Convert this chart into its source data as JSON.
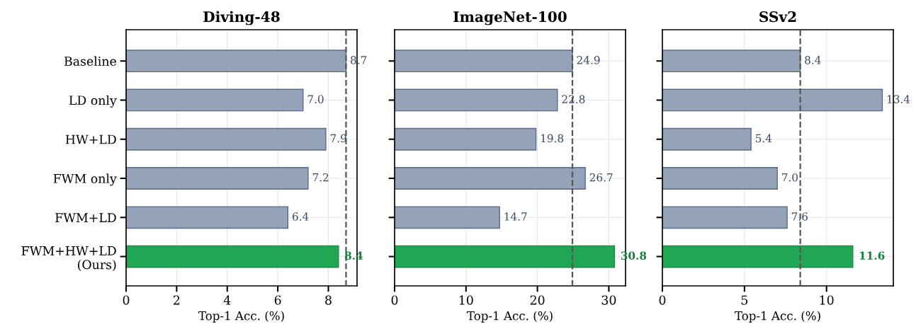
{
  "chart_data": [
    {
      "type": "bar",
      "orientation": "horizontal",
      "title": "Diving-48",
      "xlabel": "Top-1 Acc. (%)",
      "categories": [
        "Baseline",
        "LD only",
        "HW+LD",
        "FWM only",
        "FWM+LD",
        "FWM+HW+LD\n(Ours)"
      ],
      "values": [
        8.7,
        7.0,
        7.9,
        7.2,
        6.4,
        8.4
      ],
      "colors": [
        "#94a3b8",
        "#94a3b8",
        "#94a3b8",
        "#94a3b8",
        "#94a3b8",
        "#16a34a"
      ],
      "value_labels": [
        "8.7",
        "7.0",
        "7.9",
        "7.2",
        "6.4",
        "8.4"
      ],
      "xlim": [
        0,
        9.135
      ],
      "xticks": [
        0,
        2,
        4,
        6,
        8
      ],
      "grid": true,
      "ref_lines": [
        {
          "axis": "x",
          "value": 8.7,
          "label": null,
          "color": "#555555",
          "line_style": "dashed"
        }
      ]
    },
    {
      "type": "bar",
      "orientation": "horizontal",
      "title": "ImageNet-100",
      "xlabel": "Top-1 Acc. (%)",
      "categories": [
        null,
        null,
        null,
        null,
        null,
        null
      ],
      "values": [
        24.9,
        22.8,
        19.8,
        26.7,
        14.7,
        30.8
      ],
      "colors": [
        "#94a3b8",
        "#94a3b8",
        "#94a3b8",
        "#94a3b8",
        "#94a3b8",
        "#16a34a"
      ],
      "value_labels": [
        "24.9",
        "22.8",
        "19.8",
        "26.7",
        "14.7",
        "30.8"
      ],
      "xlim": [
        0,
        32.34
      ],
      "xticks": [
        0,
        10,
        20,
        30
      ],
      "grid": true,
      "tick_labels": "x",
      "ref_lines": [
        {
          "axis": "x",
          "value": 24.9,
          "label": null,
          "color": "#555555",
          "line_style": "dashed"
        }
      ]
    },
    {
      "type": "bar",
      "orientation": "horizontal",
      "title": "SSv2",
      "xlabel": "Top-1 Acc. (%)",
      "categories": [
        null,
        null,
        null,
        null,
        null,
        null
      ],
      "values": [
        8.4,
        13.4,
        5.4,
        7.0,
        7.6,
        11.6
      ],
      "colors": [
        "#94a3b8",
        "#94a3b8",
        "#94a3b8",
        "#94a3b8",
        "#94a3b8",
        "#16a34a"
      ],
      "value_labels": [
        "8.4",
        "13.4",
        "5.4",
        "7.0",
        "7.6",
        "11.6"
      ],
      "xlim": [
        0,
        14.07
      ],
      "xticks": [
        0,
        5,
        10
      ],
      "grid": true,
      "tick_labels": "x",
      "ref_lines": [
        {
          "axis": "x",
          "value": 8.4,
          "label": null,
          "color": "#555555",
          "line_style": "dashed"
        }
      ]
    }
  ]
}
